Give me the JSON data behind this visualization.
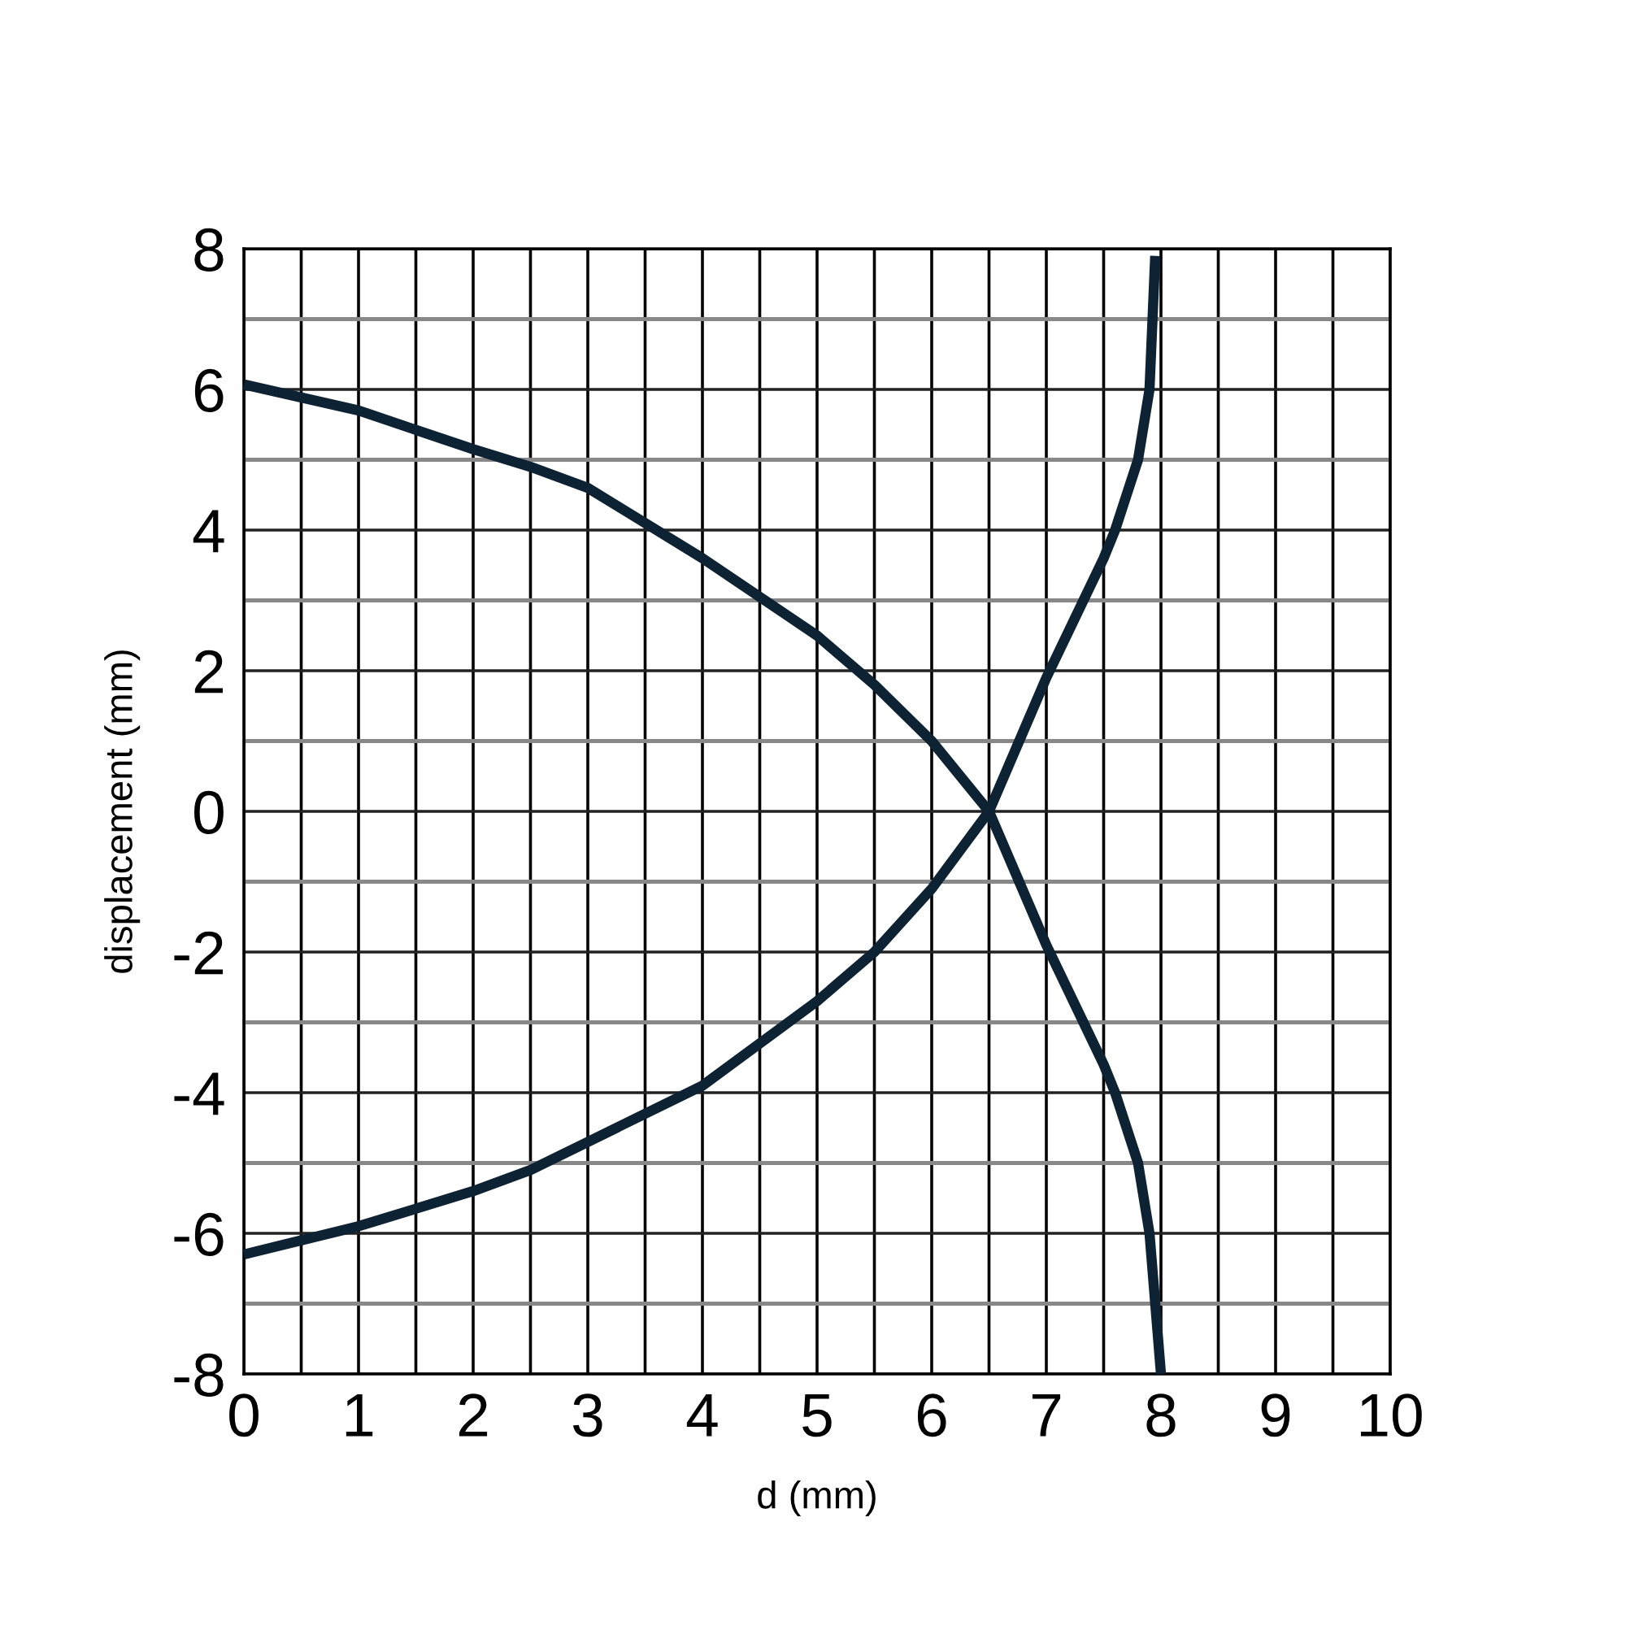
{
  "chart_data": {
    "type": "line",
    "xlabel": "d (mm)",
    "ylabel": "displacement (mm)",
    "xlim": [
      0,
      10
    ],
    "xticks": [
      0,
      1,
      2,
      3,
      4,
      5,
      6,
      7,
      8,
      9,
      10
    ],
    "ylim": [
      -8,
      8
    ],
    "yticks": [
      -8,
      -6,
      -4,
      -2,
      0,
      2,
      4,
      6,
      8
    ],
    "grid": true,
    "marker": "none",
    "line_style": "solid",
    "series": [
      {
        "color": "#0d2233",
        "x": [
          0,
          1,
          2,
          2.5,
          3,
          4,
          5,
          5.5,
          6,
          6.5,
          7,
          7.5,
          7.6,
          7.8,
          7.9,
          8
        ],
        "values": [
          6.07,
          5.7,
          5.15,
          4.9,
          4.6,
          3.6,
          2.5,
          1.8,
          1.0,
          0,
          -1.9,
          -3.6,
          -4.0,
          -5.0,
          -6.0,
          -8.0
        ]
      },
      {
        "color": "#0d2233",
        "x": [
          0,
          1,
          2,
          2.5,
          3,
          4,
          5,
          5.5,
          6,
          6.5,
          7,
          7.5,
          7.6,
          7.8,
          7.9,
          7.95
        ],
        "values": [
          -6.3,
          -5.9,
          -5.4,
          -5.1,
          -4.7,
          -3.9,
          -2.7,
          -2.0,
          -1.1,
          0,
          1.9,
          3.6,
          4.0,
          5.0,
          6.0,
          7.9
        ]
      }
    ]
  }
}
